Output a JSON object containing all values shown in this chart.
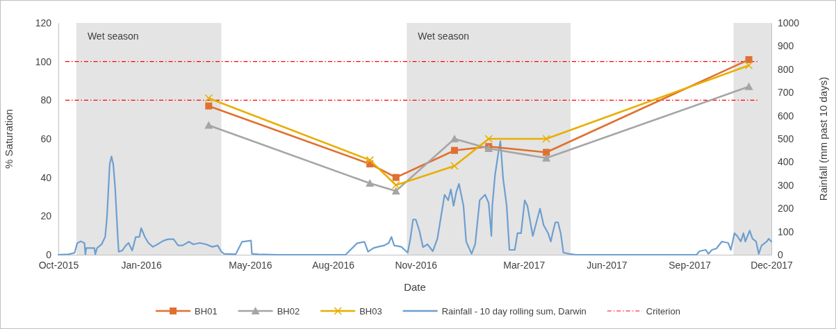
{
  "chart_data": {
    "type": "line",
    "xlabel": "Date",
    "ylabel": "% Saturation",
    "y2label": "Rainfall (mm past 10 days)",
    "xlim": [
      "2015-10-01",
      "2017-12-01"
    ],
    "xticks": [
      {
        "value": "2015-10-01",
        "label": "Oct-2015"
      },
      {
        "value": "2016-01-01",
        "label": "Jan-2016"
      },
      {
        "value": "2016-05-01",
        "label": "May-2016"
      },
      {
        "value": "2016-08-01",
        "label": "Aug-2016"
      },
      {
        "value": "2016-11-01",
        "label": "Nov-2016"
      },
      {
        "value": "2017-03-01",
        "label": "Mar-2017"
      },
      {
        "value": "2017-06-01",
        "label": "Jun-2017"
      },
      {
        "value": "2017-09-01",
        "label": "Sep-2017"
      },
      {
        "value": "2017-12-01",
        "label": "Dec-2017"
      }
    ],
    "ylim": [
      0,
      120
    ],
    "yticks": [
      0,
      20,
      40,
      60,
      80,
      100,
      120
    ],
    "y2lim": [
      0,
      1000
    ],
    "y2ticks": [
      0,
      100,
      200,
      300,
      400,
      500,
      600,
      700,
      800,
      900,
      1000
    ],
    "grid": false,
    "legend": "bottom",
    "line_style": "solid",
    "bands": [
      {
        "axis": "x",
        "from": "2015-10-21",
        "to": "2016-03-30",
        "label": "Wet season",
        "color": "#e4e4e4"
      },
      {
        "axis": "x",
        "from": "2016-10-22",
        "to": "2017-04-22",
        "label": "Wet season",
        "color": "#e4e4e4"
      },
      {
        "axis": "x",
        "from": "2017-10-20",
        "to": "2017-12-01",
        "color": "#e4e4e4"
      }
    ],
    "ref_lines": [
      {
        "axis": "y",
        "value": 100,
        "label": "Criterion",
        "color": "#ff0000",
        "line_style": "dashdot"
      },
      {
        "axis": "y",
        "value": 80,
        "color": "#ff0000",
        "line_style": "dashdot"
      }
    ],
    "series": [
      {
        "name": "BH01",
        "color": "#e07030",
        "marker": "square",
        "x": [
          "2016-03-16",
          "2016-09-11",
          "2016-10-10",
          "2016-12-14",
          "2017-01-21",
          "2017-03-26",
          "2017-11-06"
        ],
        "values": [
          77,
          47,
          40,
          54,
          56,
          53,
          101
        ]
      },
      {
        "name": "BH02",
        "color": "#a5a5a5",
        "marker": "triangle",
        "x": [
          "2016-03-16",
          "2016-09-11",
          "2016-10-10",
          "2016-12-14",
          "2017-01-21",
          "2017-03-26",
          "2017-11-06"
        ],
        "values": [
          67,
          37,
          33,
          60,
          55,
          50,
          87
        ]
      },
      {
        "name": "BH03",
        "color": "#e8ae00",
        "marker": "cross",
        "x": [
          "2016-03-16",
          "2016-09-11",
          "2016-10-10",
          "2016-12-14",
          "2017-01-21",
          "2017-03-26",
          "2017-11-06"
        ],
        "values": [
          81,
          49,
          36,
          46,
          60,
          60,
          98
        ]
      },
      {
        "name": "Rainfall - 10 day rolling sum, Darwin",
        "color": "#6d9fd0",
        "marker": "none",
        "axis": "y2",
        "x": [
          "2015-10-01",
          "2015-10-12",
          "2015-10-19",
          "2015-10-22",
          "2015-10-26",
          "2015-10-30",
          "2015-10-31",
          "2015-11-01",
          "2015-11-10",
          "2015-11-11",
          "2015-11-13",
          "2015-11-18",
          "2015-11-22",
          "2015-11-24",
          "2015-11-27",
          "2015-11-29",
          "2015-12-01",
          "2015-12-03",
          "2015-12-06",
          "2015-12-07",
          "2015-12-11",
          "2015-12-15",
          "2015-12-18",
          "2015-12-22",
          "2015-12-26",
          "2015-12-30",
          "2016-01-01",
          "2016-01-05",
          "2016-01-09",
          "2016-01-14",
          "2016-01-19",
          "2016-01-26",
          "2016-01-31",
          "2016-02-06",
          "2016-02-11",
          "2016-02-16",
          "2016-02-23",
          "2016-02-28",
          "2016-03-06",
          "2016-03-13",
          "2016-03-20",
          "2016-03-26",
          "2016-03-30",
          "2016-04-02",
          "2016-04-15",
          "2016-04-22",
          "2016-05-02",
          "2016-05-03",
          "2016-05-10",
          "2016-05-30",
          "2016-08-15",
          "2016-08-28",
          "2016-09-05",
          "2016-09-09",
          "2016-09-15",
          "2016-09-20",
          "2016-09-27",
          "2016-10-02",
          "2016-10-05",
          "2016-10-08",
          "2016-10-16",
          "2016-10-23",
          "2016-10-26",
          "2016-10-29",
          "2016-11-01",
          "2016-11-05",
          "2016-11-09",
          "2016-11-14",
          "2016-11-20",
          "2016-11-25",
          "2016-11-29",
          "2016-12-03",
          "2016-12-07",
          "2016-12-10",
          "2016-12-13",
          "2016-12-16",
          "2016-12-19",
          "2016-12-24",
          "2016-12-27",
          "2017-01-02",
          "2017-01-06",
          "2017-01-11",
          "2017-01-17",
          "2017-01-21",
          "2017-01-24",
          "2017-01-25",
          "2017-01-28",
          "2017-02-01",
          "2017-02-03",
          "2017-02-06",
          "2017-02-10",
          "2017-02-13",
          "2017-02-19",
          "2017-02-22",
          "2017-02-26",
          "2017-03-02",
          "2017-03-05",
          "2017-03-11",
          "2017-03-15",
          "2017-03-19",
          "2017-03-23",
          "2017-03-28",
          "2017-03-31",
          "2017-04-02",
          "2017-04-05",
          "2017-04-08",
          "2017-04-11",
          "2017-04-14",
          "2017-04-20",
          "2017-04-28",
          "2017-09-09",
          "2017-09-12",
          "2017-09-19",
          "2017-09-22",
          "2017-09-26",
          "2017-10-01",
          "2017-10-07",
          "2017-10-14",
          "2017-10-17",
          "2017-10-21",
          "2017-10-24",
          "2017-10-28",
          "2017-10-31",
          "2017-11-02",
          "2017-11-07",
          "2017-11-10",
          "2017-11-14",
          "2017-11-17",
          "2017-11-20",
          "2017-11-26",
          "2017-11-28",
          "2017-12-01"
        ],
        "values": [
          0,
          2,
          8,
          50,
          58,
          50,
          2,
          29,
          29,
          2,
          29,
          45,
          77,
          163,
          389,
          424,
          389,
          292,
          77,
          13,
          18,
          40,
          51,
          18,
          77,
          77,
          115,
          77,
          51,
          34,
          45,
          61,
          67,
          67,
          40,
          40,
          56,
          45,
          51,
          45,
          34,
          40,
          13,
          4,
          2,
          56,
          61,
          4,
          2,
          0,
          0,
          50,
          56,
          13,
          29,
          34,
          40,
          51,
          77,
          40,
          34,
          9,
          69,
          152,
          152,
          104,
          33,
          45,
          15,
          69,
          164,
          259,
          235,
          282,
          211,
          270,
          306,
          211,
          57,
          4,
          45,
          235,
          259,
          223,
          81,
          211,
          342,
          448,
          490,
          330,
          211,
          21,
          21,
          93,
          93,
          235,
          211,
          81,
          140,
          199,
          128,
          93,
          57,
          93,
          140,
          140,
          93,
          9,
          4,
          0,
          0,
          15,
          21,
          4,
          21,
          27,
          57,
          51,
          21,
          93,
          81,
          57,
          93,
          57,
          104,
          69,
          57,
          4,
          39,
          57,
          69,
          57
        ]
      }
    ]
  }
}
